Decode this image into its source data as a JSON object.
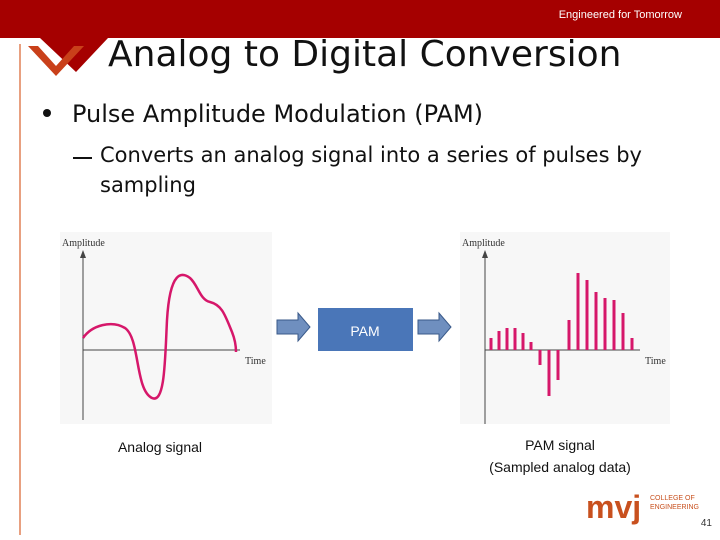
{
  "header": {
    "tagline": "Engineered for Tomorrow",
    "title": "Analog to Digital Conversion"
  },
  "bullet": {
    "text": "Pulse Amplitude Modulation (PAM)",
    "sub_bullet": "Converts an analog signal into a series of pulses by sampling"
  },
  "figures": {
    "analog": {
      "y_axis": "Amplitude",
      "x_axis": "Time",
      "caption": "Analog signal"
    },
    "process": {
      "label": "PAM"
    },
    "pam": {
      "y_axis": "Amplitude",
      "x_axis": "Time",
      "caption": [
        "PAM signal",
        "(Sampled analog data)"
      ]
    }
  },
  "footer": {
    "logo": "mvj",
    "logo_sub": [
      "COLLEGE OF",
      "ENGINEERING"
    ],
    "page_number": "41"
  }
}
